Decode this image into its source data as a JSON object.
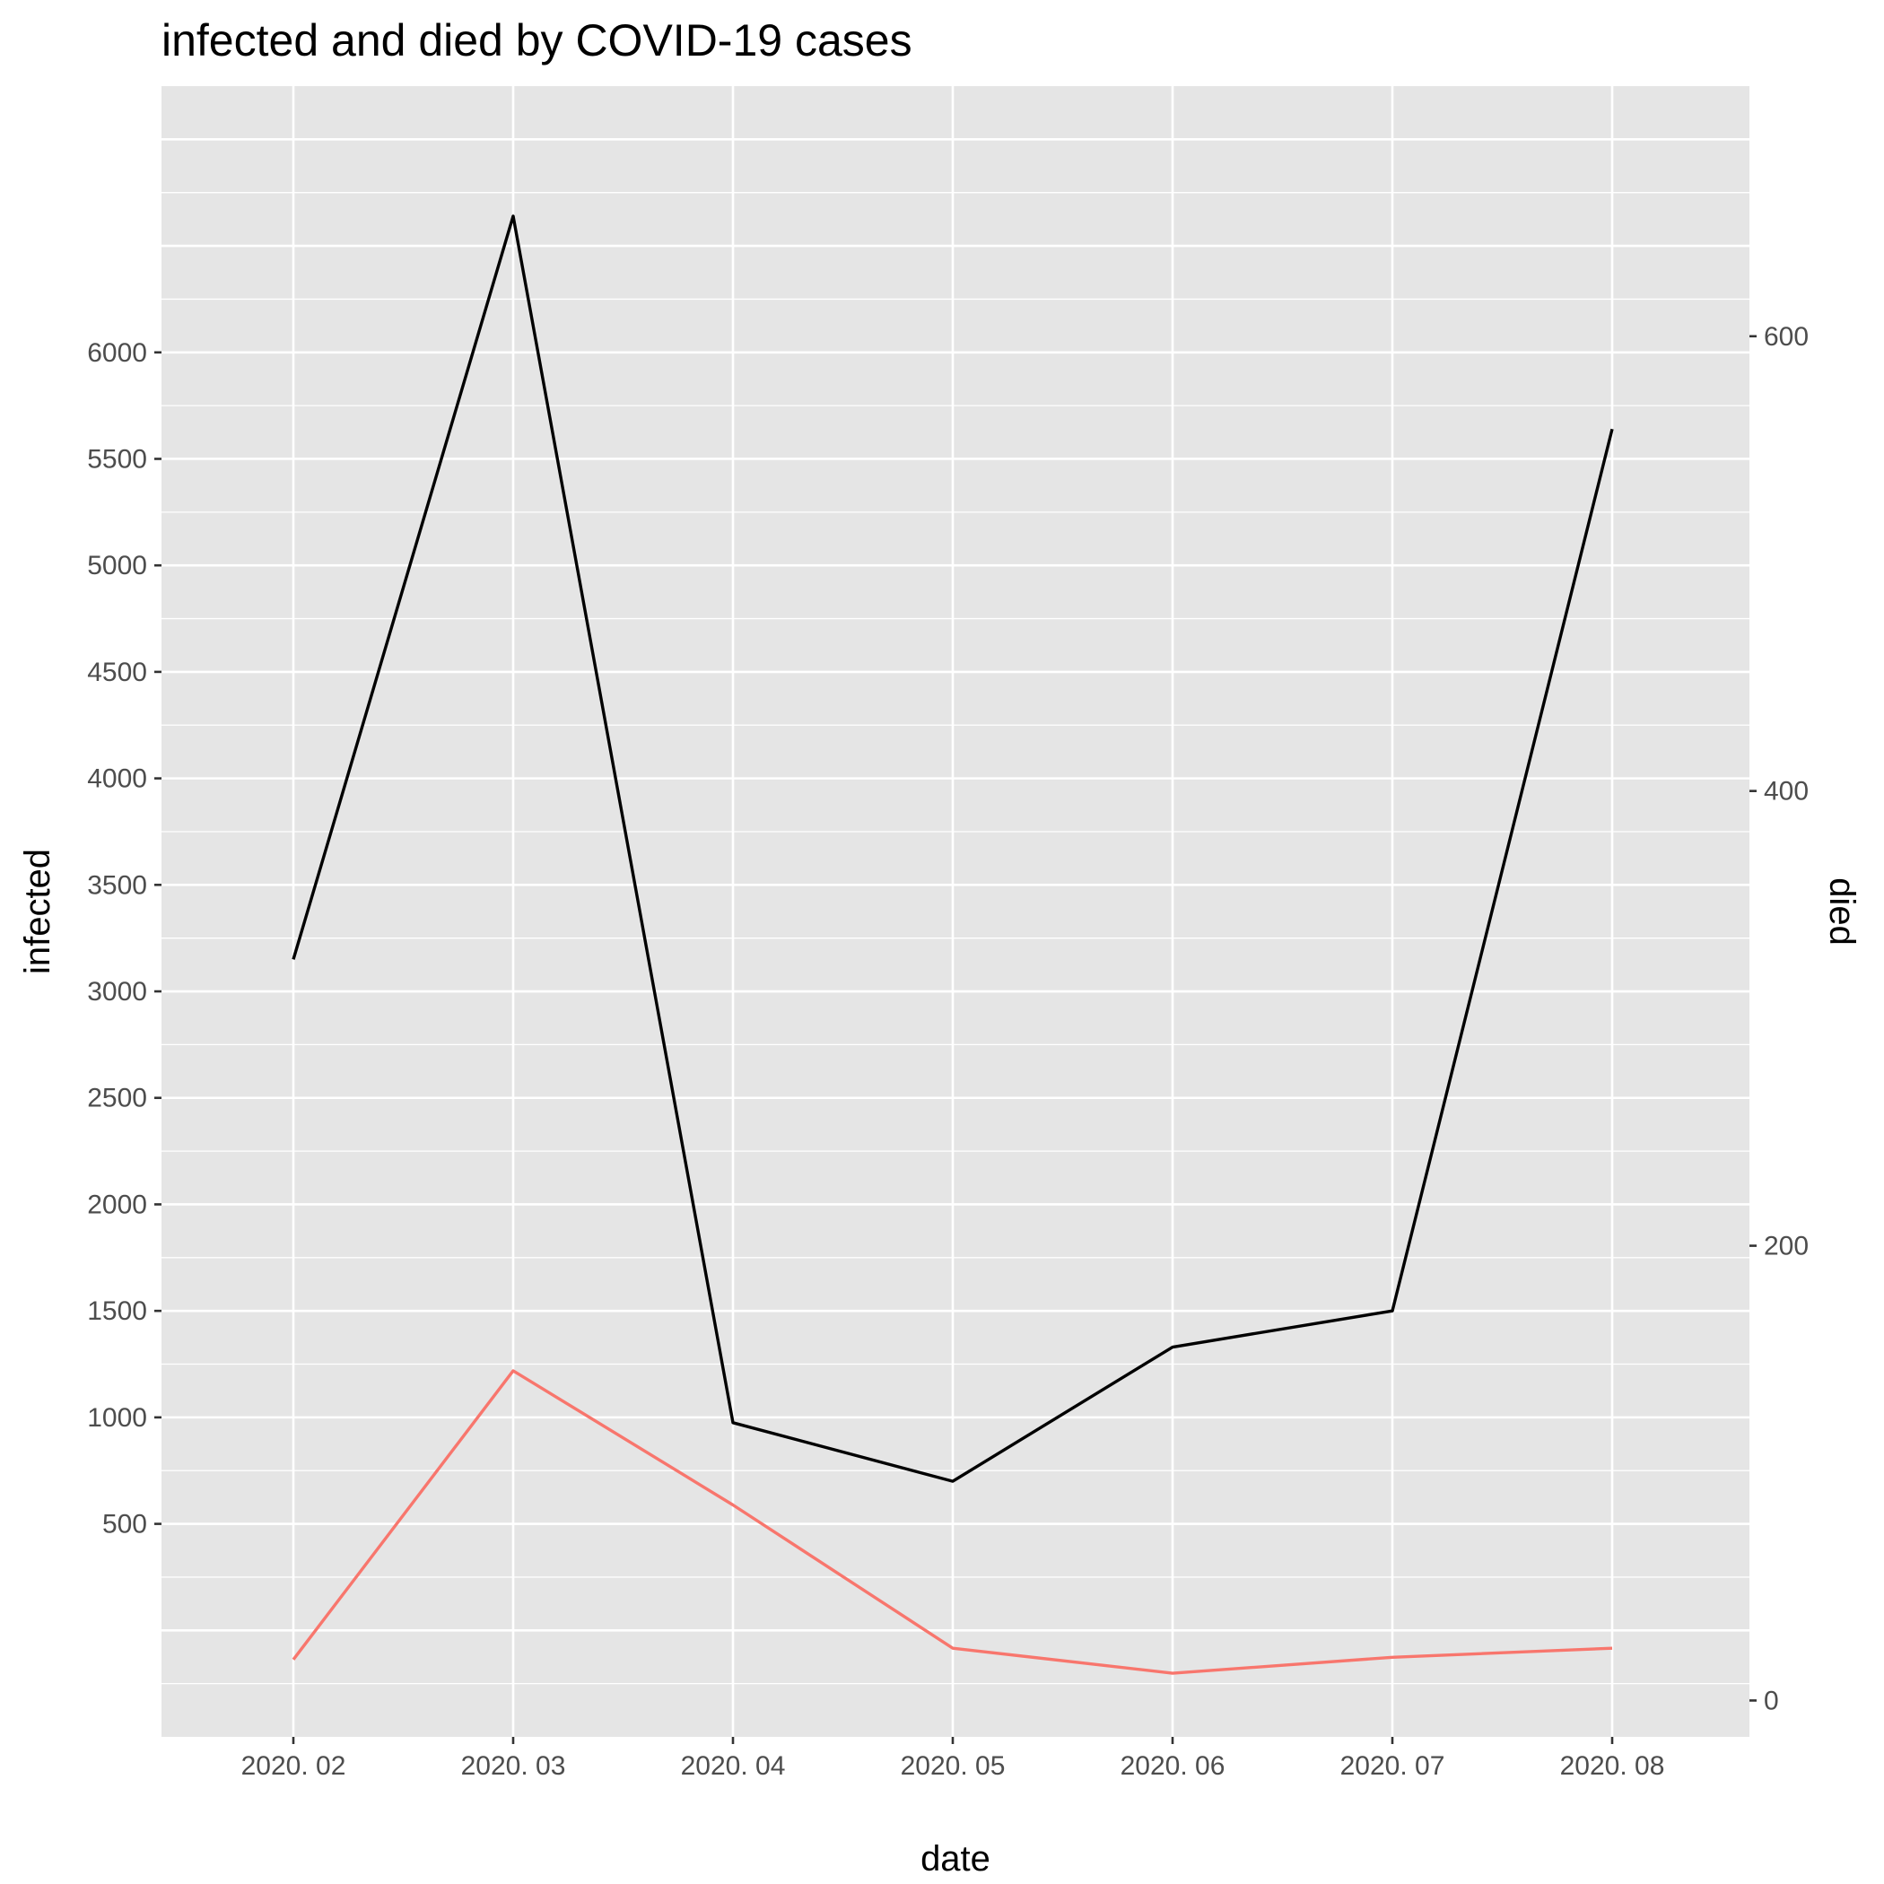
{
  "chart_data": {
    "type": "line",
    "title": "infected and died by COVID-19 cases",
    "xlabel": "date",
    "ylabel": "infected",
    "y2label": "died",
    "categories": [
      "2020. 02",
      "2020. 03",
      "2020. 04",
      "2020. 05",
      "2020. 06",
      "2020. 07",
      "2020. 08"
    ],
    "ylim": [
      -500,
      7250
    ],
    "y2lim": [
      -16,
      710
    ],
    "y_ticks": [
      "500",
      "1000",
      "1500",
      "2000",
      "2500",
      "3000",
      "3500",
      "4000",
      "4500",
      "5000",
      "5500",
      "6000"
    ],
    "y2_ticks": [
      "0",
      "200",
      "400",
      "600"
    ],
    "grid": true,
    "series": [
      {
        "axis": "left",
        "color": "#000000",
        "values": [
          3150,
          6640,
          975,
          700,
          1330,
          1500,
          5640
        ]
      },
      {
        "axis": "right",
        "color": "#f8766d",
        "values": [
          18,
          145,
          86,
          23,
          12,
          19,
          23
        ]
      }
    ]
  },
  "colors": {
    "panel": "#e5e5e5",
    "grid": "#ffffff",
    "tick_text": "#4d4d4d",
    "tick_mark": "#333333"
  }
}
